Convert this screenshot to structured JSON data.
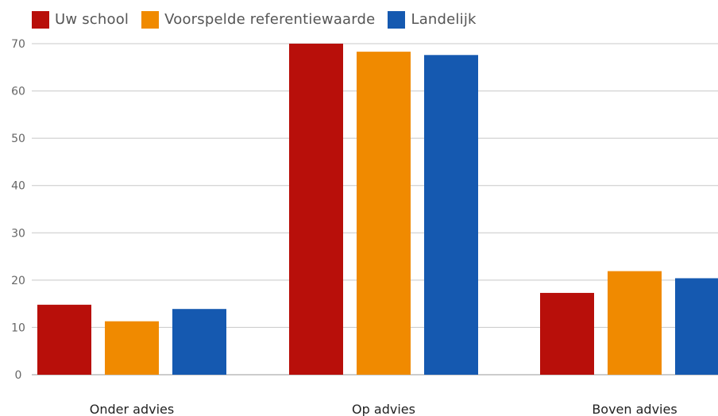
{
  "chart_data": {
    "type": "bar",
    "title": "",
    "xlabel": "",
    "ylabel": "",
    "categories": [
      "Onder advies",
      "Op advies",
      "Boven advies"
    ],
    "series": [
      {
        "name": "Uw school",
        "color": "#B80F0A",
        "values": [
          14.8,
          70.0,
          17.3
        ]
      },
      {
        "name": "Voorspelde referentiewaarde",
        "color": "#F08A00",
        "values": [
          11.3,
          68.3,
          21.9
        ]
      },
      {
        "name": "Landelijk",
        "color": "#1559B0",
        "values": [
          13.9,
          67.6,
          20.4
        ]
      }
    ],
    "ylim": [
      0,
      70
    ],
    "yticks": [
      0,
      10,
      20,
      30,
      40,
      50,
      60,
      70
    ],
    "grid": true,
    "legend_position": "top-left"
  }
}
